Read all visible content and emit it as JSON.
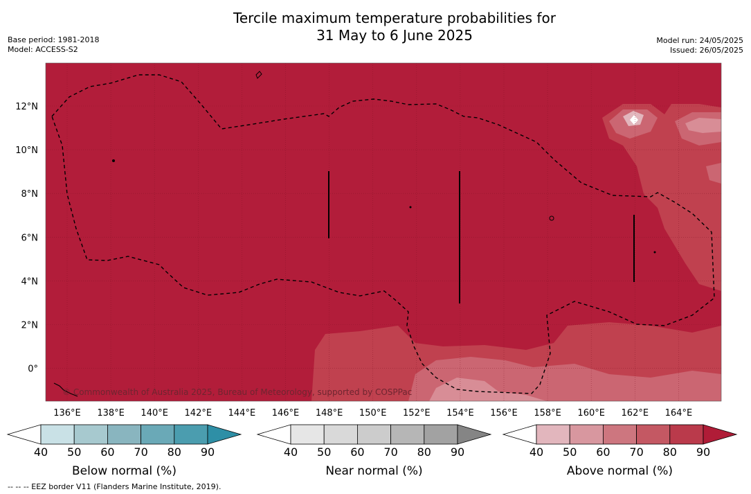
{
  "title_line1": "Tercile maximum temperature probabilities for",
  "title_line2": "31 May to 6 June 2025",
  "meta_left": [
    "Base period: 1981-2018",
    "Model: ACCESS-S2"
  ],
  "meta_right": [
    "Model run: 24/05/2025",
    "Issued: 26/05/2025"
  ],
  "copyright": "© Commonwealth of Australia 2025, Bureau of Meteorology, supported by COSPPac",
  "footnote": "--  --  -- EEZ border V11 (Flanders Marine Institute, 2019).",
  "lon_ticks": [
    "136°E",
    "138°E",
    "140°E",
    "142°E",
    "144°E",
    "146°E",
    "148°E",
    "150°E",
    "152°E",
    "154°E",
    "156°E",
    "158°E",
    "160°E",
    "162°E",
    "164°E"
  ],
  "lat_ticks": [
    "12°N",
    "10°N",
    "8°N",
    "6°N",
    "4°N",
    "2°N",
    "0°"
  ],
  "colorbars": [
    {
      "label": "Below normal (%)",
      "ticks": [
        "40",
        "50",
        "60",
        "70",
        "80",
        "90"
      ],
      "colors": [
        "#ffffff",
        "#c9e1e6",
        "#a7c9cf",
        "#89b5bf",
        "#6aa9b7",
        "#4b9daf",
        "#2e8fa6"
      ]
    },
    {
      "label": "Near normal (%)",
      "ticks": [
        "40",
        "50",
        "60",
        "70",
        "80",
        "90"
      ],
      "colors": [
        "#ffffff",
        "#e6e6e6",
        "#d9d9d9",
        "#cccccc",
        "#b6b6b6",
        "#a2a2a2",
        "#858585"
      ]
    },
    {
      "label": "Above normal (%)",
      "ticks": [
        "40",
        "50",
        "60",
        "70",
        "80",
        "90"
      ],
      "colors": [
        "#ffffff",
        "#e2b6bd",
        "#d8979f",
        "#cd767f",
        "#c45863",
        "#ba3a4b",
        "#b01c37"
      ]
    }
  ],
  "colors": {
    "above_80_90": "#b21d3a",
    "above_70_80": "#c0414f",
    "above_60_70": "#cb6672",
    "above_50_60": "#d88d96",
    "ocean_bg": "#b21d3a"
  }
}
